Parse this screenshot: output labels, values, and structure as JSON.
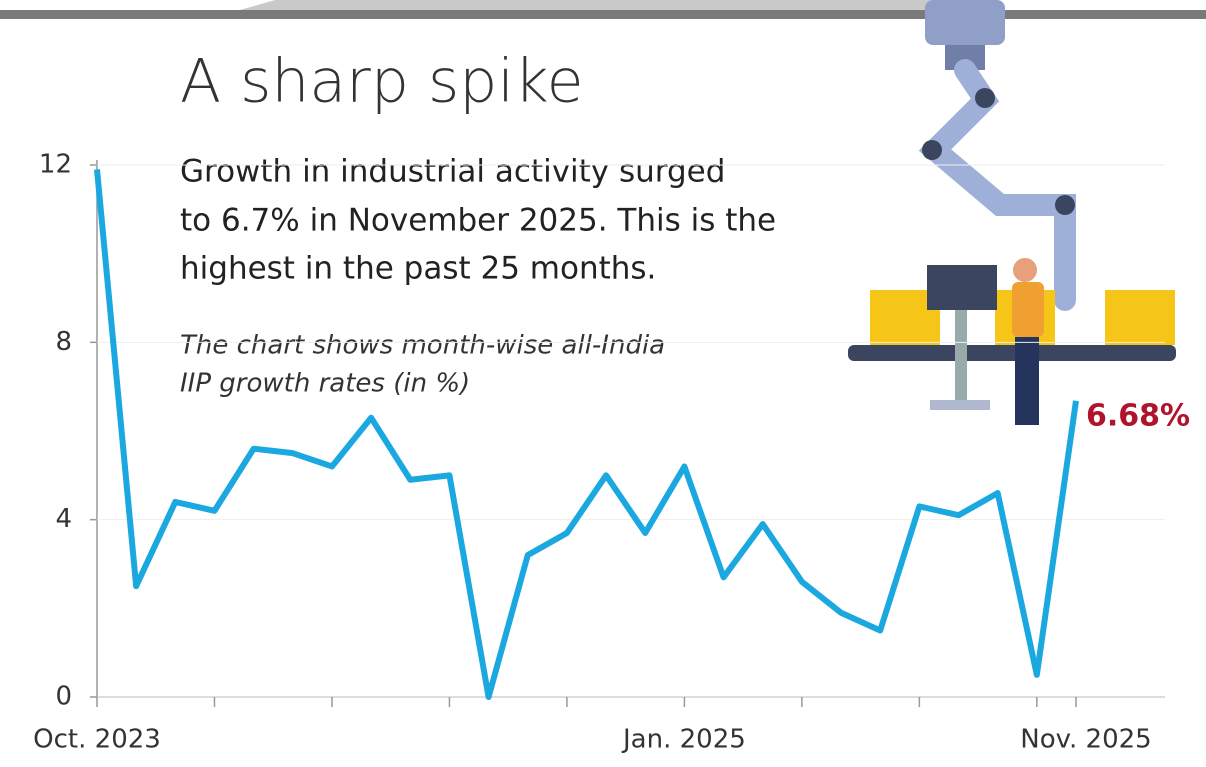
{
  "chart_data": {
    "type": "line",
    "title": "A sharp spike",
    "subtitle_lines": [
      "Growth in industrial activity surged",
      "to 6.7% in November 2025. This is the",
      "highest in the past 25 months."
    ],
    "note_lines": [
      "The chart shows month-wise all-India",
      "IIP growth rates (in %)"
    ],
    "categories": [
      "Oct. 2023",
      null,
      null,
      null,
      null,
      null,
      null,
      null,
      null,
      null,
      null,
      null,
      null,
      null,
      null,
      "Jan. 2025",
      null,
      null,
      null,
      null,
      null,
      null,
      null,
      null,
      null,
      "Nov. 2025"
    ],
    "values": [
      11.9,
      2.5,
      4.4,
      4.2,
      5.6,
      5.5,
      5.2,
      6.3,
      4.9,
      5.0,
      0,
      3.2,
      3.7,
      5.0,
      3.7,
      5.2,
      2.7,
      3.9,
      2.6,
      1.9,
      1.5,
      4.3,
      4.1,
      4.6,
      0.5,
      6.68
    ],
    "value_labels": [
      null,
      null,
      null,
      null,
      null,
      null,
      null,
      null,
      null,
      null,
      null,
      null,
      null,
      null,
      null,
      null,
      null,
      null,
      null,
      null,
      null,
      null,
      null,
      null,
      null,
      "6.68%"
    ],
    "color": "#1ba8e0",
    "ylim": [
      0,
      12
    ],
    "yticks": [
      0,
      4,
      8,
      12
    ],
    "grid": true
  }
}
